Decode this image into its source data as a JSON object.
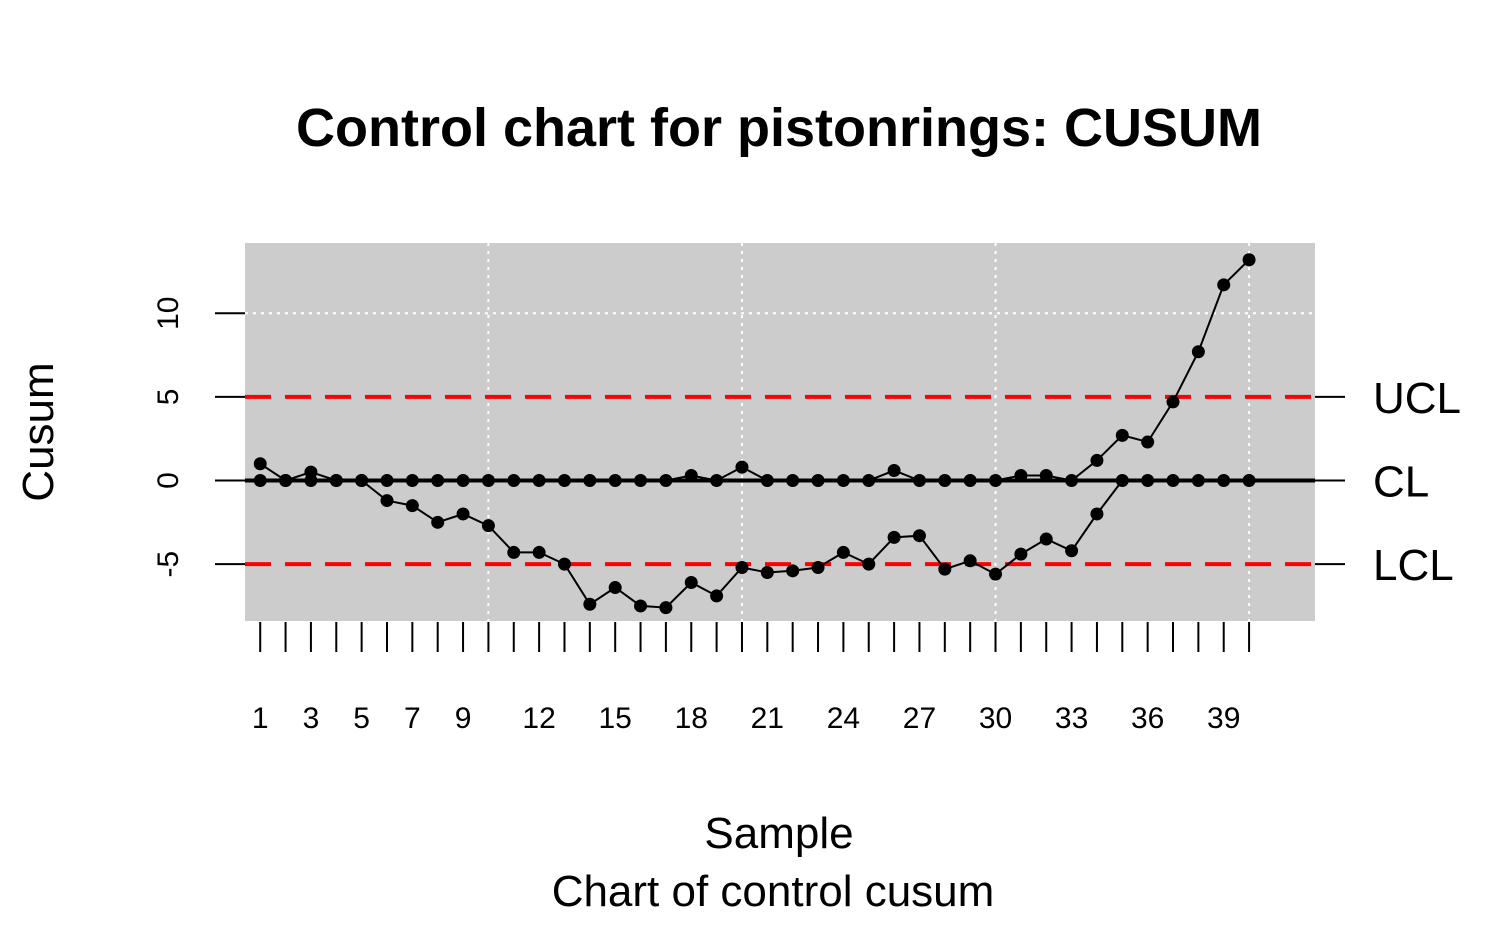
{
  "chart_data": {
    "type": "line",
    "title": "Control chart for pistonrings: CUSUM",
    "xlabel": "Sample",
    "subtitle": "Chart of control cusum",
    "ylabel": "Cusum",
    "xlim": [
      0.4,
      42.6
    ],
    "ylim": [
      -8.4,
      14.2
    ],
    "x_tick_labels": [
      "1",
      "3",
      "5",
      "7",
      "9",
      "12",
      "15",
      "18",
      "21",
      "24",
      "27",
      "30",
      "33",
      "36",
      "39"
    ],
    "y_ticks": [
      -5,
      0,
      5,
      10
    ],
    "y_tick_labels": [
      "-5",
      "0",
      "5",
      "10"
    ],
    "limits": {
      "UCL": 5,
      "CL": 0,
      "LCL": -5
    },
    "limit_labels": [
      "UCL",
      "CL",
      "LCL"
    ],
    "series": [
      {
        "values": [
          1.0,
          0.0,
          0.5,
          0.0,
          0.0,
          -1.2,
          -1.5,
          -2.5,
          -2.0,
          -2.7,
          -4.3,
          -4.3,
          -5.0,
          -7.4,
          -6.4,
          -7.5,
          -7.6,
          -6.1,
          -6.9,
          -5.2,
          -5.5,
          -5.4,
          -5.2,
          -4.3,
          -5.0,
          -3.4,
          -3.3,
          -5.3,
          -4.8,
          -5.6,
          -4.4,
          -3.5,
          -4.2,
          -2.0,
          0.0,
          0.0,
          0.0,
          0.0,
          0.0,
          0.0
        ]
      },
      {
        "values": [
          0.0,
          0.0,
          0.0,
          0.0,
          0.0,
          0.0,
          0.0,
          0.0,
          0.0,
          0.0,
          0.0,
          0.0,
          0.0,
          0.0,
          0.0,
          0.0,
          0.0,
          0.3,
          0.0,
          0.8,
          0.0,
          0.0,
          0.0,
          0.0,
          0.0,
          0.6,
          0.0,
          0.0,
          0.0,
          0.0,
          0.3,
          0.3,
          0.0,
          1.2,
          2.7,
          2.3,
          4.7,
          7.7,
          11.7,
          13.2
        ]
      }
    ],
    "colors": {
      "panel": "#cccccc",
      "grid": "#ffffff",
      "limit_line": "#ff0000",
      "center_line": "#000000",
      "points": "#000000"
    },
    "grid": true
  }
}
